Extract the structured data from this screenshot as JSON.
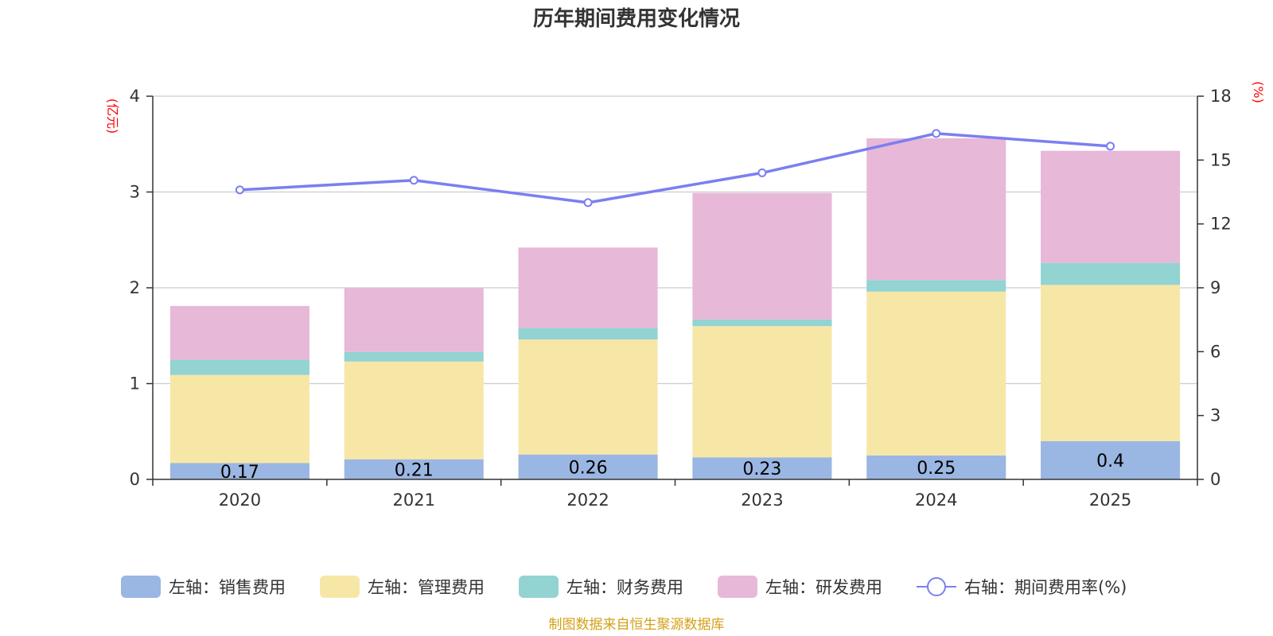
{
  "chart_data": {
    "type": "bar",
    "title": "历年期间费用变化情况",
    "categories": [
      "2020",
      "2021",
      "2022",
      "2023",
      "2024",
      "2025"
    ],
    "left_axis": {
      "unit": "(亿元)",
      "ylim": [
        0,
        4
      ],
      "ticks": [
        "0",
        "1",
        "2",
        "3",
        "4"
      ]
    },
    "right_axis": {
      "unit": "(%)",
      "ylim": [
        0,
        18
      ],
      "ticks": [
        "0",
        "3",
        "6",
        "9",
        "12",
        "15",
        "18"
      ]
    },
    "series": [
      {
        "name": "左轴：销售费用",
        "kind": "bar",
        "color": "#9ab6e2",
        "values": [
          0.17,
          0.21,
          0.26,
          0.23,
          0.25,
          0.4
        ],
        "labels": [
          "0.17",
          "0.21",
          "0.26",
          "0.23",
          "0.25",
          "0.4"
        ]
      },
      {
        "name": "左轴：管理费用",
        "kind": "bar",
        "color": "#f7e7a7",
        "values": [
          0.92,
          1.02,
          1.2,
          1.37,
          1.71,
          1.63
        ]
      },
      {
        "name": "左轴：财务费用",
        "kind": "bar",
        "color": "#93d3d2",
        "values": [
          0.16,
          0.1,
          0.12,
          0.07,
          0.12,
          0.23
        ]
      },
      {
        "name": "左轴：研发费用",
        "kind": "bar",
        "color": "#e7b8d8",
        "values": [
          0.56,
          0.67,
          0.84,
          1.32,
          1.48,
          1.17
        ]
      },
      {
        "name": "右轴：期间费用率(%)",
        "kind": "line",
        "color": "#7b7ff0",
        "values": [
          13.6,
          14.05,
          13.0,
          14.4,
          16.25,
          15.65
        ]
      }
    ]
  },
  "footer": {
    "source": "制图数据来自恒生聚源数据库"
  },
  "colors": {
    "axis_unit": "#ff0000",
    "footer": "#d4a017",
    "grid": "#cccccc",
    "axis": "#333333"
  }
}
